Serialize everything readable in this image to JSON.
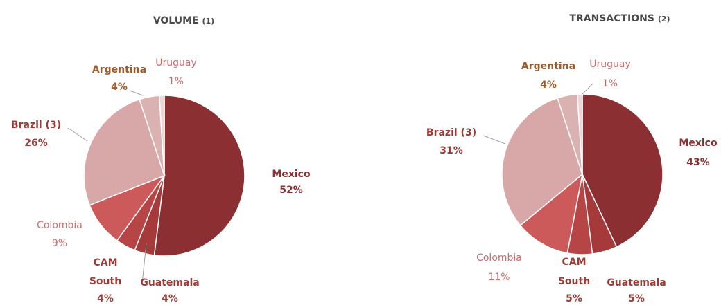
{
  "chart_data": [
    {
      "type": "pie",
      "title": "VOLUME",
      "title_note": "(1)",
      "slices": [
        {
          "label": "Mexico",
          "value": 52,
          "value_label": "52%",
          "color": "#8b2f33",
          "label_color": "#8b2f33"
        },
        {
          "label": "Guatemala",
          "value": 4,
          "value_label": "4%",
          "color": "#a63a3a",
          "label_color": "#9e3a36"
        },
        {
          "label": "CAM South",
          "value": 4,
          "value_label": "4%",
          "color": "#b84545",
          "label_color": "#9e3a36"
        },
        {
          "label": "Colombia",
          "value": 9,
          "value_label": "9%",
          "color": "#cc5a5a",
          "label_color": "#d06a6a"
        },
        {
          "label": "Brazil (3)",
          "value": 26,
          "value_label": "26%",
          "color": "#d8a8a8",
          "label_color": "#9e3a36"
        },
        {
          "label": "Argentina",
          "value": 4,
          "value_label": "4%",
          "color": "#dbb2b2",
          "label_color": "#9e5a2a"
        },
        {
          "label": "Uruguay",
          "value": 1,
          "value_label": "1%",
          "color": "#ecd6d6",
          "label_color": "#d06a6a"
        }
      ]
    },
    {
      "type": "pie",
      "title": "TRANSACTIONS",
      "title_note": "(2)",
      "slices": [
        {
          "label": "Mexico",
          "value": 43,
          "value_label": "43%",
          "color": "#8b2f33",
          "label_color": "#8b2f33"
        },
        {
          "label": "Guatemala",
          "value": 5,
          "value_label": "5%",
          "color": "#a63a3a",
          "label_color": "#9e3a36"
        },
        {
          "label": "CAM South",
          "value": 5,
          "value_label": "5%",
          "color": "#b84545",
          "label_color": "#9e3a36"
        },
        {
          "label": "Colombia",
          "value": 11,
          "value_label": "11%",
          "color": "#cc5a5a",
          "label_color": "#d06a6a"
        },
        {
          "label": "Brazil (3)",
          "value": 31,
          "value_label": "31%",
          "color": "#d8a8a8",
          "label_color": "#9e3a36"
        },
        {
          "label": "Argentina",
          "value": 4,
          "value_label": "4%",
          "color": "#dbb2b2",
          "label_color": "#9e5a2a"
        },
        {
          "label": "Uruguay",
          "value": 1,
          "value_label": "1%",
          "color": "#ecd6d6",
          "label_color": "#d06a6a"
        }
      ]
    }
  ]
}
